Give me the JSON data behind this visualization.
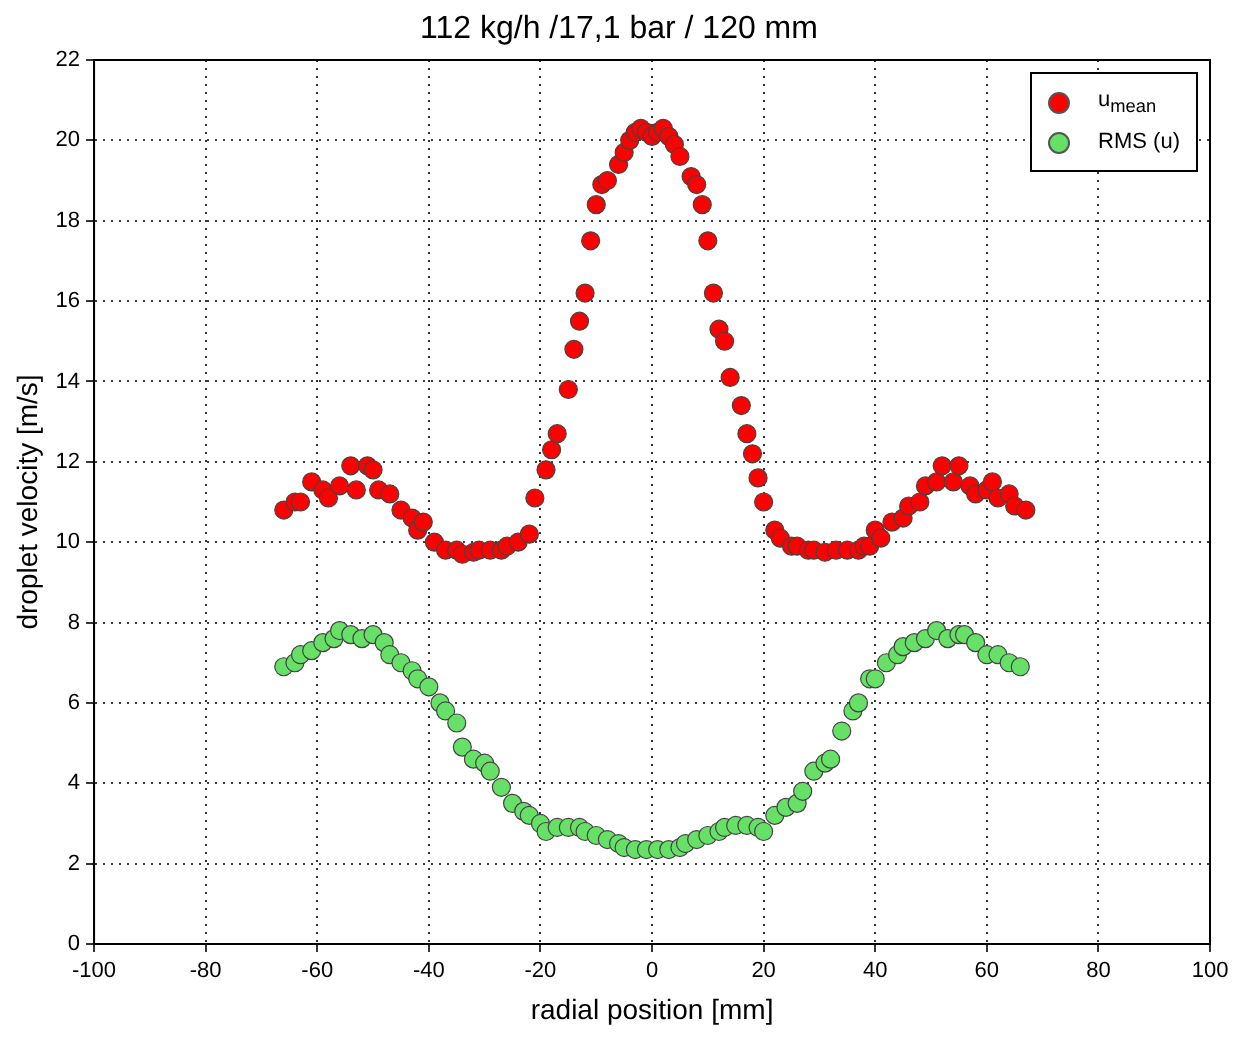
{
  "chart_data": {
    "type": "scatter",
    "title": "112 kg/h /17,1 bar / 120 mm",
    "xlabel": "radial position [mm]",
    "ylabel": "droplet velocity [m/s]",
    "xlim": [
      -100,
      100
    ],
    "xticks": [
      -100,
      -80,
      -60,
      -40,
      -20,
      0,
      20,
      40,
      60,
      80,
      100
    ],
    "ylim": [
      0,
      22
    ],
    "yticks": [
      0,
      2,
      4,
      6,
      8,
      10,
      12,
      14,
      16,
      18,
      20,
      22
    ],
    "grid": true,
    "legend": "top right",
    "marker": "circle",
    "series": [
      {
        "name": "u$_{mean}$",
        "color": "#ff0000",
        "x": [
          -66,
          -64,
          -63,
          -61,
          -59,
          -58,
          -56,
          -54,
          -53,
          -51,
          -50,
          -49,
          -47,
          -45,
          -43,
          -42,
          -41,
          -39,
          -37,
          -35,
          -34,
          -32,
          -31,
          -29,
          -27,
          -26,
          -24,
          -22,
          -21,
          -19,
          -18,
          -17,
          -15,
          -14,
          -13,
          -12,
          -11,
          -10,
          -9,
          -8,
          -6,
          -5,
          -4,
          -3,
          -2,
          -1,
          0,
          1,
          2,
          3,
          4,
          5,
          7,
          8,
          9,
          10,
          11,
          12,
          13,
          14,
          16,
          17,
          18,
          19,
          20,
          22,
          23,
          25,
          26,
          28,
          29,
          31,
          33,
          35,
          37,
          38,
          39,
          40,
          41,
          43,
          45,
          46,
          48,
          49,
          51,
          52,
          54,
          55,
          57,
          58,
          60,
          61,
          62,
          64,
          65,
          67
        ],
        "values": [
          10.8,
          11.0,
          11.0,
          11.5,
          11.3,
          11.1,
          11.4,
          11.9,
          11.3,
          11.9,
          11.8,
          11.3,
          11.2,
          10.8,
          10.6,
          10.3,
          10.5,
          10.0,
          9.8,
          9.8,
          9.7,
          9.75,
          9.8,
          9.8,
          9.8,
          9.9,
          10.0,
          10.2,
          11.1,
          11.8,
          12.3,
          12.7,
          13.8,
          14.8,
          15.5,
          16.2,
          17.5,
          18.4,
          18.9,
          19.0,
          19.4,
          19.7,
          20.0,
          20.2,
          20.3,
          20.2,
          20.1,
          20.2,
          20.3,
          20.1,
          19.9,
          19.6,
          19.1,
          18.9,
          18.4,
          17.5,
          16.2,
          15.3,
          15.0,
          14.1,
          13.4,
          12.7,
          12.2,
          11.6,
          11.0,
          10.3,
          10.1,
          9.9,
          9.9,
          9.8,
          9.8,
          9.75,
          9.8,
          9.8,
          9.8,
          9.9,
          9.9,
          10.3,
          10.1,
          10.5,
          10.6,
          10.9,
          11.0,
          11.4,
          11.5,
          11.9,
          11.5,
          11.9,
          11.4,
          11.2,
          11.3,
          11.5,
          11.1,
          11.2,
          10.9,
          10.8
        ]
      },
      {
        "name": "RMS (u)",
        "color": "#66e066",
        "x": [
          -66,
          -64,
          -63,
          -61,
          -59,
          -57,
          -56,
          -54,
          -52,
          -50,
          -48,
          -47,
          -45,
          -43,
          -42,
          -40,
          -38,
          -37,
          -35,
          -34,
          -32,
          -30,
          -29,
          -27,
          -25,
          -23,
          -22,
          -20,
          -19,
          -17,
          -15,
          -13,
          -12,
          -10,
          -8,
          -6,
          -5,
          -3,
          -1,
          1,
          3,
          5,
          6,
          8,
          10,
          12,
          13,
          15,
          17,
          19,
          20,
          22,
          24,
          26,
          27,
          29,
          31,
          32,
          34,
          36,
          37,
          39,
          40,
          42,
          44,
          45,
          47,
          49,
          51,
          53,
          55,
          56,
          58,
          60,
          62,
          64,
          66
        ],
        "values": [
          6.9,
          7.0,
          7.2,
          7.3,
          7.5,
          7.6,
          7.8,
          7.7,
          7.6,
          7.7,
          7.5,
          7.2,
          7.0,
          6.8,
          6.6,
          6.4,
          6.0,
          5.8,
          5.5,
          4.9,
          4.6,
          4.5,
          4.3,
          3.9,
          3.5,
          3.3,
          3.2,
          3.0,
          2.8,
          2.9,
          2.9,
          2.9,
          2.8,
          2.7,
          2.6,
          2.5,
          2.4,
          2.35,
          2.35,
          2.35,
          2.35,
          2.4,
          2.5,
          2.6,
          2.7,
          2.8,
          2.9,
          2.95,
          2.95,
          2.9,
          2.8,
          3.2,
          3.4,
          3.5,
          3.8,
          4.3,
          4.5,
          4.6,
          5.3,
          5.8,
          6.0,
          6.6,
          6.6,
          7.0,
          7.2,
          7.4,
          7.5,
          7.6,
          7.8,
          7.6,
          7.7,
          7.7,
          7.5,
          7.2,
          7.2,
          7.0,
          6.9
        ]
      }
    ]
  }
}
